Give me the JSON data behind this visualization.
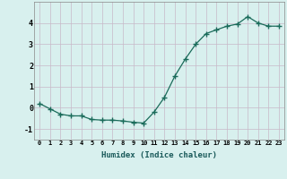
{
  "x": [
    0,
    1,
    2,
    3,
    4,
    5,
    6,
    7,
    8,
    9,
    10,
    11,
    12,
    13,
    14,
    15,
    16,
    17,
    18,
    19,
    20,
    21,
    22,
    23
  ],
  "y": [
    0.2,
    -0.05,
    -0.3,
    -0.38,
    -0.38,
    -0.55,
    -0.58,
    -0.58,
    -0.62,
    -0.68,
    -0.72,
    -0.2,
    0.5,
    1.5,
    2.3,
    3.0,
    3.5,
    3.68,
    3.85,
    3.95,
    4.3,
    4.0,
    3.85,
    3.85
  ],
  "xlabel": "Humidex (Indice chaleur)",
  "ylim": [
    -1.5,
    5.0
  ],
  "xlim": [
    -0.5,
    23.5
  ],
  "yticks": [
    -1,
    0,
    1,
    2,
    3,
    4
  ],
  "xticks": [
    0,
    1,
    2,
    3,
    4,
    5,
    6,
    7,
    8,
    9,
    10,
    11,
    12,
    13,
    14,
    15,
    16,
    17,
    18,
    19,
    20,
    21,
    22,
    23
  ],
  "line_color": "#1a6b5a",
  "marker": "+",
  "marker_size": 4.0,
  "bg_color": "#d8f0ee",
  "grid_color_major": "#c8b8c8",
  "grid_color_minor": "#c8b8c8",
  "spine_color": "#888888"
}
